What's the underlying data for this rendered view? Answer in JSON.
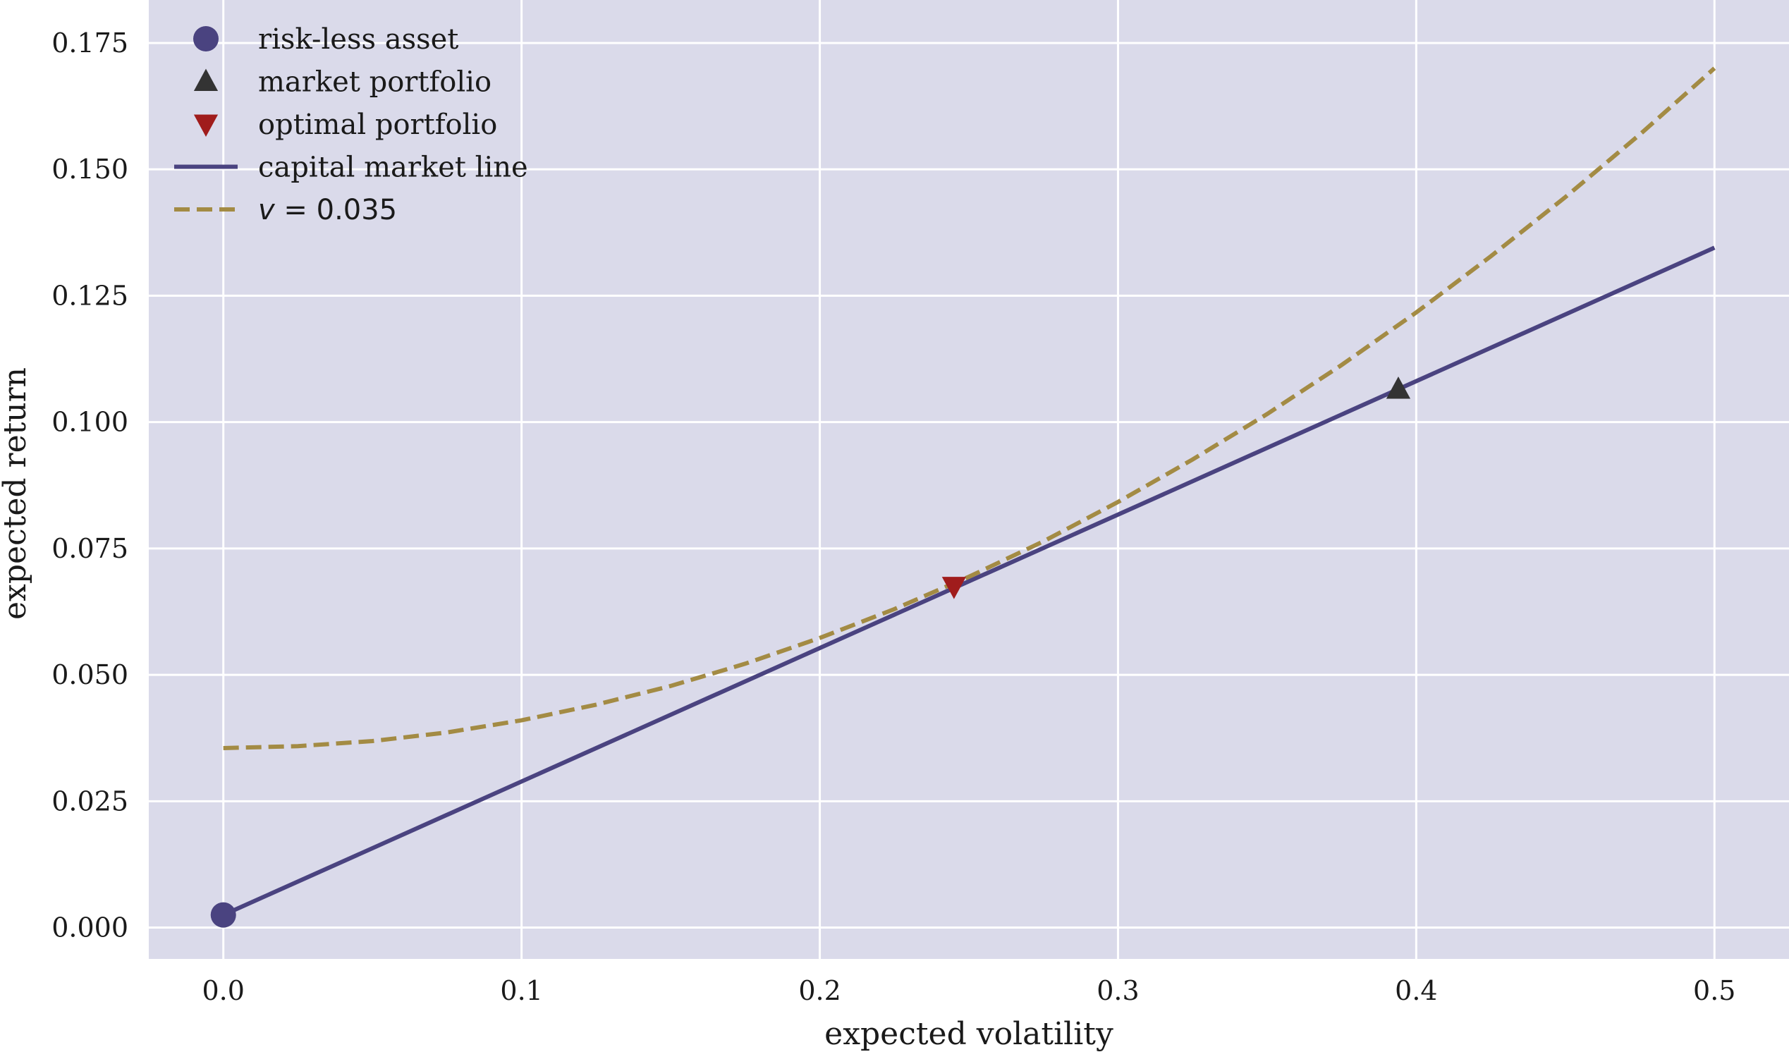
{
  "chart_data": {
    "type": "line",
    "xlabel": "expected volatility",
    "ylabel": "expected return",
    "xlim": [
      -0.025,
      0.525
    ],
    "ylim": [
      -0.0062,
      0.1835
    ],
    "xticks": [
      0.0,
      0.1,
      0.2,
      0.3,
      0.4,
      0.5
    ],
    "xtick_labels": [
      "0.0",
      "0.1",
      "0.2",
      "0.3",
      "0.4",
      "0.5"
    ],
    "yticks": [
      0.0,
      0.025,
      0.05,
      0.075,
      0.1,
      0.125,
      0.15,
      0.175
    ],
    "ytick_labels": [
      "0.000",
      "0.025",
      "0.050",
      "0.075",
      "0.100",
      "0.125",
      "0.150",
      "0.175"
    ],
    "grid": true,
    "legend_position": "top-left",
    "series": [
      {
        "name": "capital market line",
        "kind": "line",
        "style": "solid",
        "color": "#4a4380",
        "x": [
          0.0,
          0.5
        ],
        "y": [
          0.0025,
          0.1345
        ]
      },
      {
        "name": "v = 0.035",
        "kind": "line",
        "style": "dashed",
        "color": "#a38b44",
        "x": [
          0.0,
          0.025,
          0.05,
          0.075,
          0.1,
          0.125,
          0.15,
          0.175,
          0.2,
          0.225,
          0.25,
          0.275,
          0.3,
          0.325,
          0.35,
          0.375,
          0.4,
          0.425,
          0.45,
          0.475,
          0.5
        ],
        "y": [
          0.0355,
          0.0359,
          0.0369,
          0.0386,
          0.041,
          0.0441,
          0.0478,
          0.0522,
          0.0573,
          0.063,
          0.0694,
          0.0764,
          0.0842,
          0.0926,
          0.1016,
          0.1113,
          0.1217,
          0.1328,
          0.1445,
          0.1569,
          0.17
        ]
      },
      {
        "name": "risk-less asset",
        "kind": "marker",
        "marker": "circle",
        "color": "#4a4380",
        "x": [
          0.0
        ],
        "y": [
          0.0025
        ]
      },
      {
        "name": "market portfolio",
        "kind": "marker",
        "marker": "triangle-up",
        "color": "#333333",
        "x": [
          0.394
        ],
        "y": [
          0.1065
        ]
      },
      {
        "name": "optimal portfolio",
        "kind": "marker",
        "marker": "triangle-down",
        "color": "#a01c1c",
        "x": [
          0.245
        ],
        "y": [
          0.0675
        ]
      }
    ],
    "legend": [
      {
        "label": "risk-less asset",
        "marker": "circle",
        "color": "#4a4380"
      },
      {
        "label": "market portfolio",
        "marker": "triangle-up",
        "color": "#333333"
      },
      {
        "label": "optimal portfolio",
        "marker": "triangle-down",
        "color": "#a01c1c"
      },
      {
        "label": "capital market line",
        "marker": "line-solid",
        "color": "#4a4380"
      },
      {
        "label": "v = 0.035",
        "marker": "line-dashed",
        "color": "#a38b44"
      }
    ],
    "colors": {
      "plot_background": "#dadaea",
      "grid": "#ffffff"
    }
  }
}
